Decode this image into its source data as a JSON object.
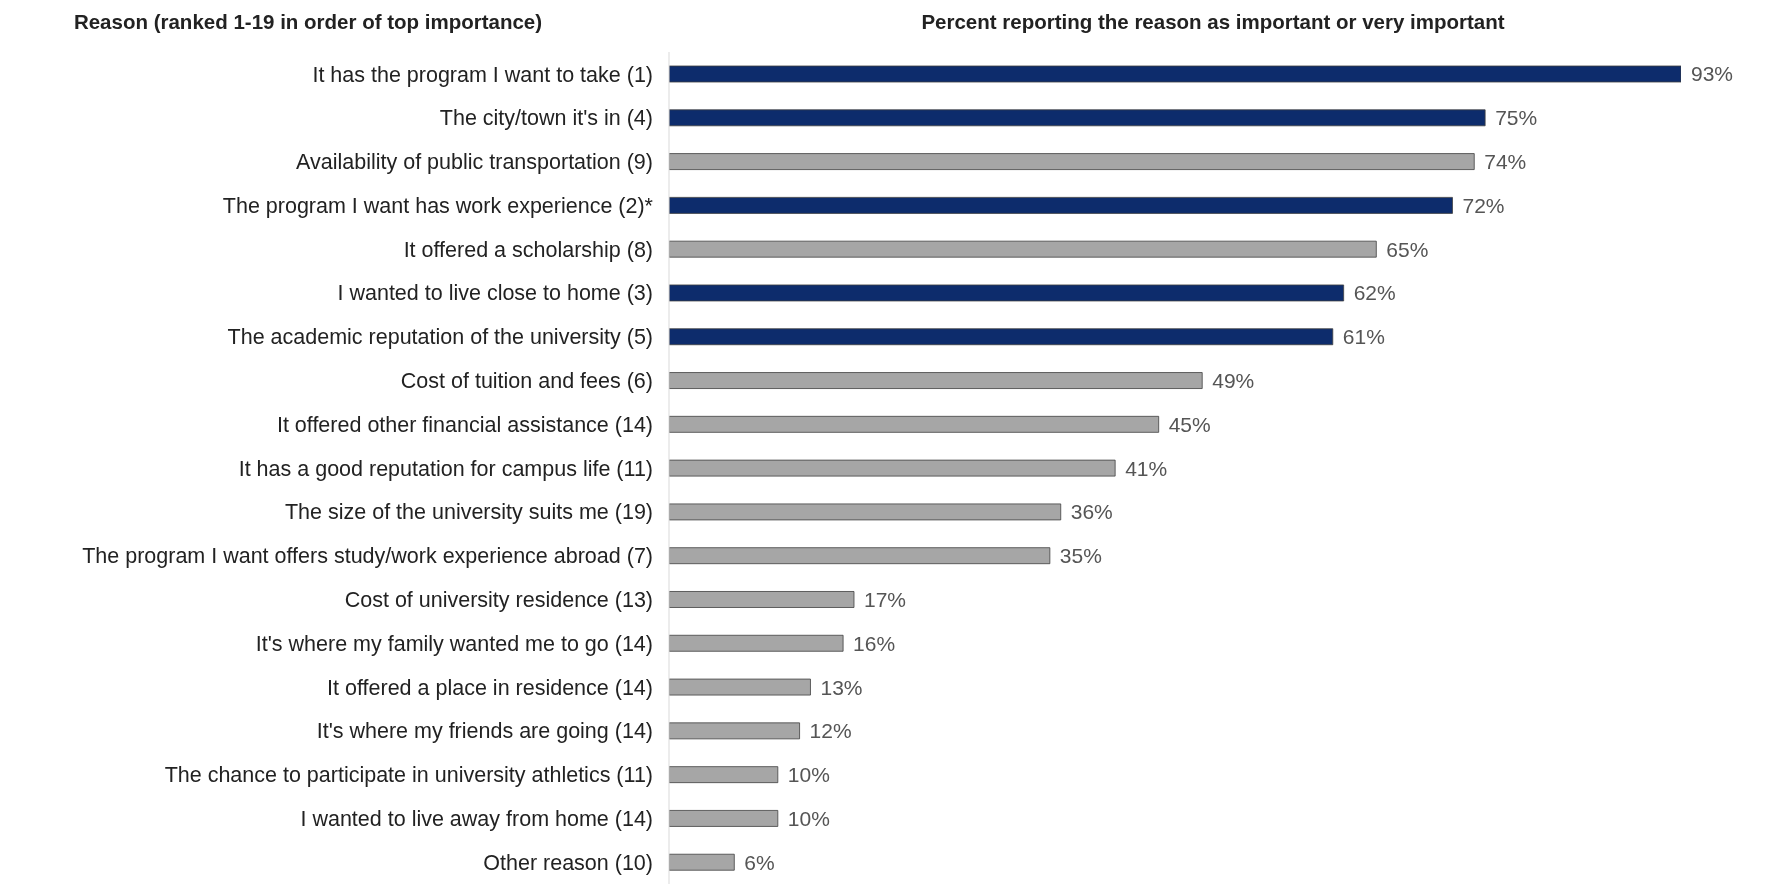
{
  "chart_data": {
    "type": "bar",
    "orientation": "horizontal",
    "title": "Percent reporting the reason as important or very important",
    "ylabel": "Reason (ranked 1-19 in order of top importance)",
    "categories": [
      "It has the program I want to take (1)",
      "The city/town it's in (4)",
      "Availability of public transportation (9)",
      "The program I want has work experience (2)*",
      "It offered a scholarship (8)",
      "I wanted to live close to home (3)",
      "The academic reputation of the university (5)",
      "Cost of tuition and fees (6)",
      "It offered other financial assistance (14)",
      "It has a good reputation for campus life (11)",
      "The size of the university suits me (19)",
      "The program I want offers study/work experience abroad (7)",
      "Cost of university residence (13)",
      "It's where my family wanted me to go (14)",
      "It offered a place in residence (14)",
      "It's where my friends are going (14)",
      "The chance to participate in university athletics (11)",
      "I wanted to live away from home (14)",
      "Other reason (10)"
    ],
    "values": [
      93,
      75,
      74,
      72,
      65,
      62,
      61,
      49,
      45,
      41,
      36,
      35,
      17,
      16,
      13,
      12,
      10,
      10,
      6
    ],
    "value_labels": [
      "93%",
      "75%",
      "74%",
      "72%",
      "65%",
      "62%",
      "61%",
      "49%",
      "45%",
      "41%",
      "36%",
      "35%",
      "17%",
      "16%",
      "13%",
      "12%",
      "10%",
      "10%",
      "6%"
    ],
    "colors": [
      "#0d2c6c",
      "#0d2c6c",
      "#a6a6a6",
      "#0d2c6c",
      "#a6a6a6",
      "#0d2c6c",
      "#0d2c6c",
      "#a6a6a6",
      "#a6a6a6",
      "#a6a6a6",
      "#a6a6a6",
      "#a6a6a6",
      "#a6a6a6",
      "#a6a6a6",
      "#a6a6a6",
      "#a6a6a6",
      "#a6a6a6",
      "#a6a6a6",
      "#a6a6a6"
    ]
  }
}
